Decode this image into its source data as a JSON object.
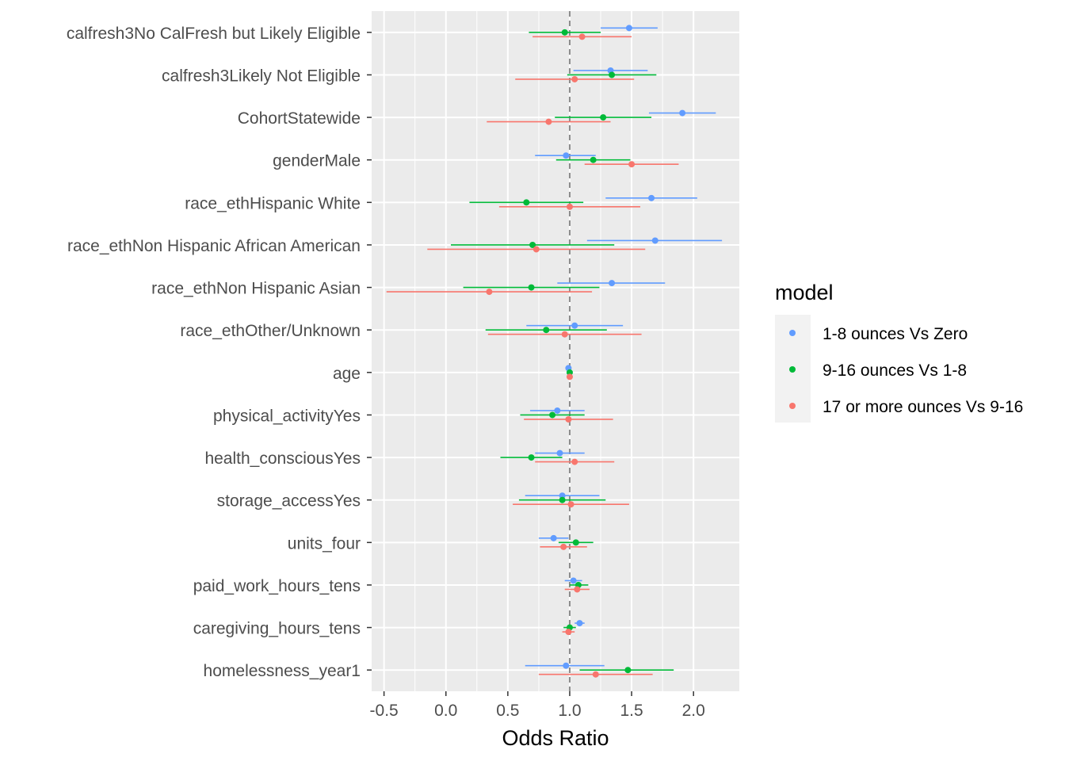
{
  "chart_data": {
    "type": "scatter",
    "subtype": "coefficient-plot with horizontal error bars",
    "title": "",
    "xlabel": "Odds Ratio",
    "ylabel": "",
    "xlim": [
      -0.6,
      2.37
    ],
    "x_ticks": [
      -0.5,
      0.0,
      0.5,
      1.0,
      1.5,
      2.0
    ],
    "x_tick_labels": [
      "-0.5",
      "0.0",
      "0.5",
      "1.0",
      "1.5",
      "2.0"
    ],
    "reference_line": 1.0,
    "grid": true,
    "legend": {
      "title": "model",
      "position": "right"
    },
    "categories": [
      "calfresh3No CalFresh but Likely Eligible",
      "calfresh3Likely Not Eligible",
      "CohortStatewide",
      "genderMale",
      "race_ethHispanic White",
      "race_ethNon Hispanic African American",
      "race_ethNon Hispanic Asian",
      "race_ethOther/Unknown",
      "age",
      "physical_activityYes",
      "health_consciousYes",
      "storage_accessYes",
      "units_four",
      "paid_work_hours_tens",
      "caregiving_hours_tens",
      "homelessness_year1"
    ],
    "series": [
      {
        "name": "1-8 ounces Vs Zero",
        "color": "#619CFF",
        "estimate": [
          1.48,
          1.33,
          1.91,
          0.97,
          1.66,
          1.69,
          1.34,
          1.04,
          0.99,
          0.9,
          0.92,
          0.94,
          0.87,
          1.03,
          1.08,
          0.97
        ],
        "lower": [
          1.25,
          1.03,
          1.64,
          0.72,
          1.29,
          1.14,
          0.9,
          0.65,
          0.97,
          0.68,
          0.72,
          0.64,
          0.75,
          0.96,
          1.04,
          0.64
        ],
        "upper": [
          1.71,
          1.63,
          2.18,
          1.21,
          2.03,
          2.23,
          1.77,
          1.43,
          1.01,
          1.12,
          1.12,
          1.24,
          0.99,
          1.1,
          1.12,
          1.28
        ]
      },
      {
        "name": "9-16 ounces Vs 1-8",
        "color": "#00BA38",
        "estimate": [
          0.96,
          1.34,
          1.27,
          1.19,
          0.65,
          0.7,
          0.69,
          0.81,
          1.0,
          0.86,
          0.69,
          0.94,
          1.05,
          1.07,
          1.0,
          1.47
        ],
        "lower": [
          0.67,
          0.98,
          0.88,
          0.89,
          0.19,
          0.04,
          0.14,
          0.32,
          0.98,
          0.6,
          0.44,
          0.59,
          0.91,
          1.0,
          0.95,
          1.08
        ],
        "upper": [
          1.25,
          1.7,
          1.66,
          1.49,
          1.11,
          1.36,
          1.24,
          1.3,
          1.02,
          1.12,
          0.94,
          1.29,
          1.19,
          1.15,
          1.05,
          1.84
        ]
      },
      {
        "name": "17 or more ounces Vs 9-16",
        "color": "#F8766D",
        "estimate": [
          1.1,
          1.04,
          0.83,
          1.5,
          1.0,
          0.73,
          0.35,
          0.96,
          1.0,
          0.99,
          1.04,
          1.01,
          0.95,
          1.06,
          0.99,
          1.21
        ],
        "lower": [
          0.7,
          0.56,
          0.33,
          1.12,
          0.43,
          -0.15,
          -0.48,
          0.34,
          0.98,
          0.63,
          0.72,
          0.54,
          0.76,
          0.96,
          0.94,
          0.75
        ],
        "upper": [
          1.5,
          1.52,
          1.33,
          1.88,
          1.57,
          1.61,
          1.18,
          1.58,
          1.02,
          1.35,
          1.36,
          1.48,
          1.14,
          1.16,
          1.04,
          1.67
        ]
      }
    ]
  }
}
